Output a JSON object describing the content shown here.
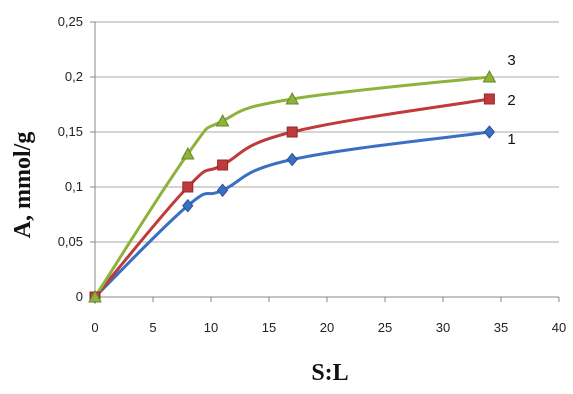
{
  "chart_data": {
    "type": "line",
    "xlabel": "S:L",
    "ylabel": "A, mmol/g",
    "xlim": [
      0,
      40
    ],
    "ylim": [
      0,
      0.25
    ],
    "x_ticks": [
      0,
      5,
      10,
      15,
      20,
      25,
      30,
      35,
      40
    ],
    "y_ticks": [
      0,
      0.05,
      0.1,
      0.15,
      0.2,
      0.25
    ],
    "x_tick_labels": [
      "0",
      "5",
      "10",
      "15",
      "20",
      "25",
      "30",
      "35",
      "40"
    ],
    "y_tick_labels": [
      "0",
      "0,05",
      "0,1",
      "0,15",
      "0,2",
      "0,25"
    ],
    "grid": "horizontal",
    "legend": "none",
    "series": [
      {
        "label": "1",
        "marker": "diamond",
        "color": "#3a6fc4",
        "x": [
          0,
          8,
          11,
          17,
          34
        ],
        "values": [
          0,
          0.083,
          0.097,
          0.125,
          0.15
        ]
      },
      {
        "label": "2",
        "marker": "square",
        "color": "#c0393b",
        "x": [
          0,
          8,
          11,
          17,
          34
        ],
        "values": [
          0,
          0.1,
          0.12,
          0.15,
          0.18
        ]
      },
      {
        "label": "3",
        "marker": "triangle",
        "color": "#8db33a",
        "x": [
          0,
          8,
          11,
          17,
          34
        ],
        "values": [
          0,
          0.13,
          0.16,
          0.18,
          0.2
        ]
      }
    ]
  }
}
